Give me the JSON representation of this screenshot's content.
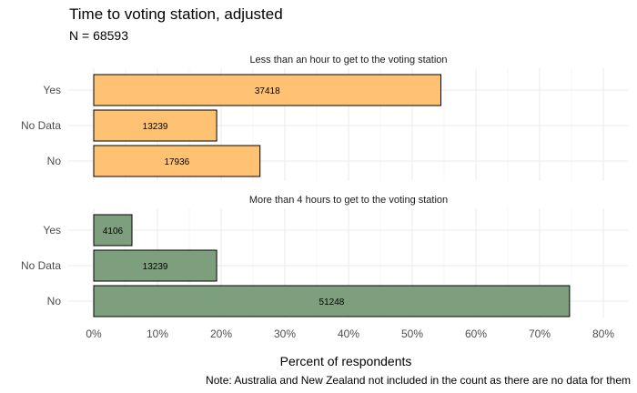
{
  "chart_data": {
    "type": "bar",
    "orientation": "horizontal",
    "title": "Time to voting station, adjusted",
    "subtitle": "N = 68593",
    "xlabel": "Percent of respondents",
    "ylabel": "",
    "note": "Note: Australia and New Zealand not included in the count as there are no data for them",
    "xlim": [
      0,
      0.82
    ],
    "x_ticks": [
      "0%",
      "10%",
      "20%",
      "30%",
      "40%",
      "50%",
      "60%",
      "70%",
      "80%"
    ],
    "grid": true,
    "legend": "none",
    "panels": [
      {
        "label": "Less than an hour to get to the voting station",
        "color": "#FFC273",
        "categories": [
          "Yes",
          "No Data",
          "No"
        ],
        "percent": [
          0.545,
          0.193,
          0.261
        ],
        "counts": [
          "37418",
          "13239",
          "17936"
        ]
      },
      {
        "label": "More than 4 hours to get to the voting station",
        "color": "#7E9F7E",
        "categories": [
          "Yes",
          "No Data",
          "No"
        ],
        "percent": [
          0.06,
          0.193,
          0.747
        ],
        "counts": [
          "4106",
          "13239",
          "51248"
        ]
      }
    ]
  }
}
